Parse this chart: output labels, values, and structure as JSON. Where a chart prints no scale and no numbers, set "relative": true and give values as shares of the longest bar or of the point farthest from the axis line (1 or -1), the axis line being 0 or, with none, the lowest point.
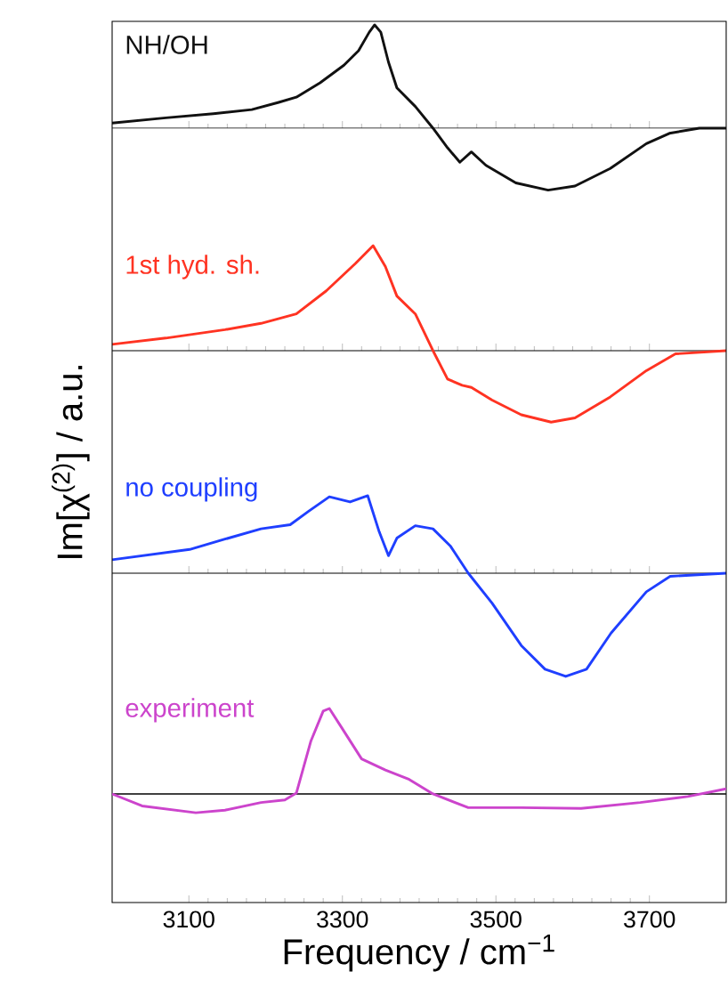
{
  "chart_data": [
    {
      "type": "line",
      "relative": true,
      "xlim": [
        3000,
        3800
      ],
      "xticks": [
        3100,
        3300,
        3500,
        3700
      ],
      "tick_labels": false,
      "x": [
        3000,
        3070,
        3132,
        3182,
        3217,
        3240,
        3271,
        3302,
        3321,
        3335,
        3342,
        3350,
        3360,
        3371,
        3395,
        3418,
        3437,
        3453,
        3468,
        3487,
        3526,
        3568,
        3603,
        3649,
        3696,
        3726,
        3765,
        3800
      ],
      "series": [
        {
          "name": "NH/OH",
          "color": "#111111",
          "values": [
            0.05,
            0.1,
            0.14,
            0.18,
            0.25,
            0.3,
            0.44,
            0.61,
            0.75,
            0.93,
            1.0,
            0.93,
            0.64,
            0.39,
            0.21,
            0,
            -0.19,
            -0.33,
            -0.23,
            -0.36,
            -0.53,
            -0.6,
            -0.56,
            -0.39,
            -0.15,
            -0.05,
            0,
            0
          ]
        }
      ]
    },
    {
      "type": "line",
      "relative": true,
      "xlim": [
        3000,
        3800
      ],
      "xticks": [
        3100,
        3300,
        3500,
        3700
      ],
      "tick_labels": false,
      "x": [
        3000,
        3070,
        3147,
        3194,
        3240,
        3279,
        3317,
        3340,
        3356,
        3371,
        3395,
        3418,
        3437,
        3456,
        3468,
        3495,
        3533,
        3572,
        3603,
        3649,
        3696,
        3734,
        3800
      ],
      "series": [
        {
          "name": "1st hyd. sh.",
          "color": "#ff3322",
          "values": [
            0.06,
            0.12,
            0.2,
            0.26,
            0.35,
            0.57,
            0.83,
            1.0,
            0.8,
            0.52,
            0.35,
            0,
            -0.27,
            -0.33,
            -0.35,
            -0.47,
            -0.61,
            -0.68,
            -0.64,
            -0.44,
            -0.19,
            -0.03,
            0
          ]
        }
      ]
    },
    {
      "type": "line",
      "relative": true,
      "xlim": [
        3000,
        3800
      ],
      "xticks": [
        3100,
        3300,
        3500,
        3700
      ],
      "tick_labels": false,
      "x": [
        3000,
        3101,
        3147,
        3194,
        3232,
        3256,
        3283,
        3310,
        3333,
        3348,
        3360,
        3371,
        3395,
        3418,
        3441,
        3464,
        3495,
        3533,
        3564,
        3591,
        3618,
        3650,
        3696,
        3727,
        3800
      ],
      "series": [
        {
          "name": "no coupling",
          "color": "#1f3fff",
          "values": [
            0.13,
            0.23,
            0.33,
            0.43,
            0.47,
            0.6,
            0.74,
            0.69,
            0.75,
            0.4,
            0.17,
            0.34,
            0.46,
            0.43,
            0.26,
            0,
            -0.29,
            -0.7,
            -0.93,
            -1.0,
            -0.93,
            -0.58,
            -0.18,
            -0.03,
            0
          ]
        }
      ]
    },
    {
      "type": "line",
      "relative": true,
      "xlim": [
        3000,
        3800
      ],
      "xticks": [
        3100,
        3300,
        3500,
        3700
      ],
      "tick_labels": "x",
      "xlabel": "Frequency / cm$^{−1}$",
      "ylabel": "Im[χ$^{(2)}$] / a.u.",
      "x": [
        3000,
        3039,
        3109,
        3147,
        3194,
        3225,
        3240,
        3259,
        3275,
        3283,
        3298,
        3325,
        3356,
        3387,
        3418,
        3464,
        3533,
        3611,
        3688,
        3750,
        3800
      ],
      "series": [
        {
          "name": "experiment",
          "color": "#cc44cc",
          "values": [
            0,
            -0.14,
            -0.22,
            -0.19,
            -0.1,
            -0.07,
            0.01,
            0.62,
            0.97,
            1.0,
            0.79,
            0.41,
            0.28,
            0.17,
            0,
            -0.16,
            -0.16,
            -0.17,
            -0.1,
            -0.03,
            0.06
          ]
        }
      ]
    }
  ]
}
